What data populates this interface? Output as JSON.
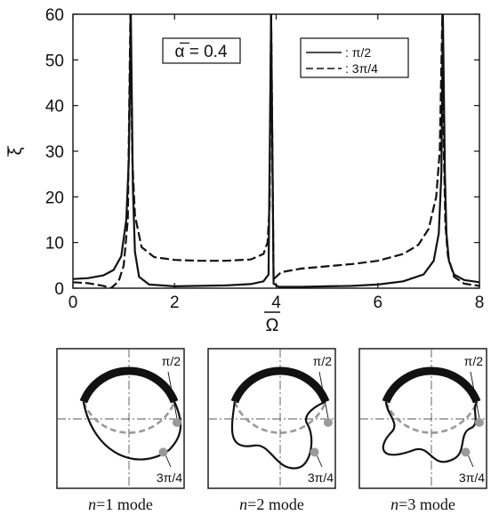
{
  "chart_data": {
    "type": "line",
    "xlabel": "Ω̄",
    "ylabel": "ξ̄",
    "xlim": [
      0,
      8
    ],
    "ylim": [
      0,
      60
    ],
    "x_ticks": [
      "0",
      "2",
      "4",
      "6",
      "8"
    ],
    "y_ticks": [
      "0",
      "10",
      "20",
      "30",
      "40",
      "50",
      "60"
    ],
    "annotation": "α̅ = 0.4",
    "legend_position": "top-right",
    "series": [
      {
        "name": ": π/2",
        "style": "solid",
        "x": [
          0,
          0.3,
          0.6,
          0.8,
          0.95,
          1.05,
          1.1,
          1.14,
          1.18,
          1.22,
          1.3,
          1.5,
          2.0,
          2.5,
          3.0,
          3.5,
          3.75,
          3.85,
          3.9,
          3.95,
          4.05,
          4.5,
          5.0,
          5.5,
          6.0,
          6.5,
          6.9,
          7.1,
          7.2,
          7.25,
          7.28,
          7.32,
          7.35,
          7.4,
          7.5,
          7.7,
          8.0
        ],
        "values": [
          2,
          2.2,
          2.8,
          4,
          7,
          15,
          28,
          60,
          22,
          8,
          2.5,
          0.8,
          0.4,
          0.5,
          0.6,
          0.9,
          1.5,
          3,
          60,
          1,
          0.3,
          0.3,
          0.4,
          0.5,
          0.8,
          1.5,
          3,
          6,
          12,
          25,
          60,
          25,
          12,
          6,
          3,
          1.8,
          1.3
        ]
      },
      {
        "name": ": 3π/4",
        "style": "dashed",
        "x": [
          0,
          0.3,
          0.6,
          0.75,
          0.9,
          1.0,
          1.08,
          1.13,
          1.17,
          1.22,
          1.35,
          1.6,
          2.0,
          2.5,
          3.0,
          3.5,
          3.75,
          3.83,
          3.87,
          3.9,
          3.95,
          4.1,
          4.5,
          5.0,
          5.5,
          6.0,
          6.5,
          6.8,
          7.0,
          7.15,
          7.22,
          7.27,
          7.3,
          7.33,
          7.38,
          7.5,
          7.7,
          8.0
        ],
        "values": [
          1.3,
          1.1,
          0.5,
          0,
          1.5,
          5,
          15,
          60,
          28,
          16,
          9,
          6.8,
          6.2,
          6,
          6,
          6.3,
          7.5,
          10,
          18,
          60,
          2,
          3.5,
          4.3,
          4.8,
          5.3,
          6,
          7.5,
          9.5,
          13,
          20,
          30,
          60,
          30,
          14,
          7,
          2.5,
          1,
          0.5
        ]
      }
    ]
  },
  "modes": [
    {
      "caption_n": "n",
      "caption_rest": "=1 mode",
      "label_top": "π/2",
      "label_bottom": "3π/4"
    },
    {
      "caption_n": "n",
      "caption_rest": "=2 mode",
      "label_top": "π/2",
      "label_bottom": "3π/4"
    },
    {
      "caption_n": "n",
      "caption_rest": "=3 mode",
      "label_top": "π/2",
      "label_bottom": "3π/4"
    }
  ]
}
